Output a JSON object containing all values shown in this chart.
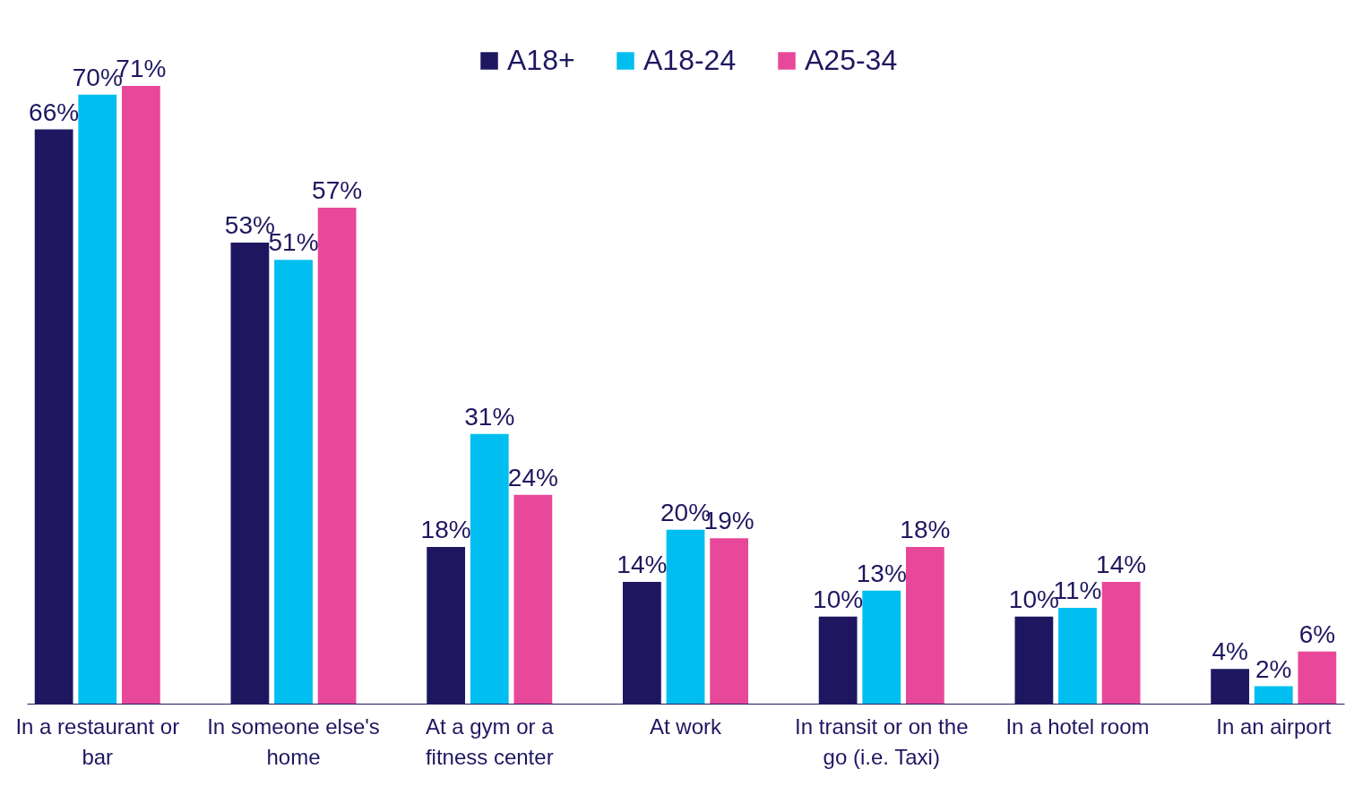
{
  "chart_data": {
    "type": "bar",
    "categories": [
      "In a restaurant or bar",
      "In someone else's home",
      "At a gym or a fitness center",
      "At work",
      "In transit or on the go (i.e. Taxi)",
      "In a hotel room",
      "In an airport"
    ],
    "series": [
      {
        "name": "A18+",
        "color": "#1e1760",
        "values": [
          66,
          53,
          18,
          14,
          10,
          10,
          4
        ],
        "value_labels": [
          "66%",
          "53%",
          "18%",
          "14%",
          "10%",
          "10%",
          "4%"
        ]
      },
      {
        "name": "A18-24",
        "color": "#00bff0",
        "values": [
          70,
          51,
          31,
          20,
          13,
          11,
          2
        ],
        "value_labels": [
          "70%",
          "51%",
          "31%",
          "20%",
          "13%",
          "11%",
          "2%"
        ]
      },
      {
        "name": "A25-34",
        "color": "#e8489a",
        "values": [
          71,
          57,
          24,
          19,
          18,
          14,
          6
        ],
        "value_labels": [
          "71%",
          "57%",
          "24%",
          "19%",
          "18%",
          "14%",
          "6%"
        ]
      }
    ],
    "legend": "top"
  }
}
